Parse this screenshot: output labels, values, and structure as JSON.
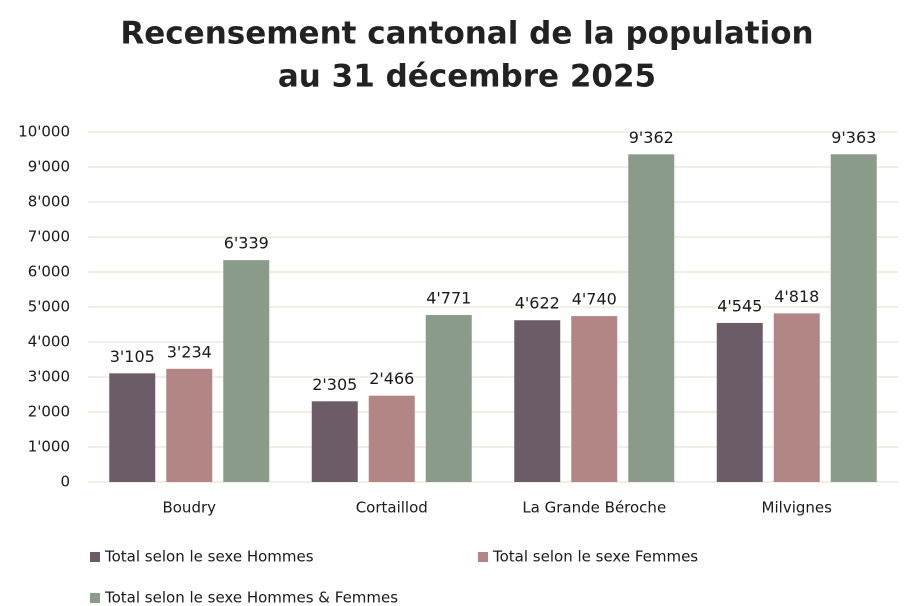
{
  "chart_data": {
    "type": "bar",
    "title": [
      "Recensement cantonal de la population",
      "au 31 décembre 2025"
    ],
    "categories": [
      "Boudry",
      "Cortaillod",
      "La Grande Béroche",
      "Milvignes"
    ],
    "series": [
      {
        "name": "Total selon le sexe Hommes",
        "color": "#6c5c68",
        "values": [
          3105,
          2305,
          4622,
          4545
        ],
        "value_labels": [
          "3'105",
          "2'305",
          "4'622",
          "4'545"
        ]
      },
      {
        "name": "Total selon le sexe Femmes",
        "color": "#b28684",
        "values": [
          3234,
          2466,
          4740,
          4818
        ],
        "value_labels": [
          "3'234",
          "2'466",
          "4'740",
          "4'818"
        ]
      },
      {
        "name": "Total selon le sexe Hommes & Femmes",
        "color": "#8b9b89",
        "values": [
          6339,
          4771,
          9362,
          9363
        ],
        "value_labels": [
          "6'339",
          "4'771",
          "9'362",
          "9'363"
        ]
      }
    ],
    "ylim": [
      0,
      10000
    ],
    "yticks": [
      0,
      {
        "value": 1000,
        "label": "1'000"
      },
      {
        "value": 2000,
        "label": "2'000"
      },
      {
        "value": 3000,
        "label": "3'000"
      },
      {
        "value": 4000,
        "label": "4'000"
      },
      {
        "value": 5000,
        "label": "5'000"
      },
      {
        "value": 6000,
        "label": "6'000"
      },
      {
        "value": 7000,
        "label": "7'000"
      },
      {
        "value": 8000,
        "label": "8'000"
      },
      {
        "value": 9000,
        "label": "9'000"
      },
      {
        "value": 10000,
        "label": "10'000"
      }
    ],
    "grid": true,
    "legend": "bottom"
  }
}
